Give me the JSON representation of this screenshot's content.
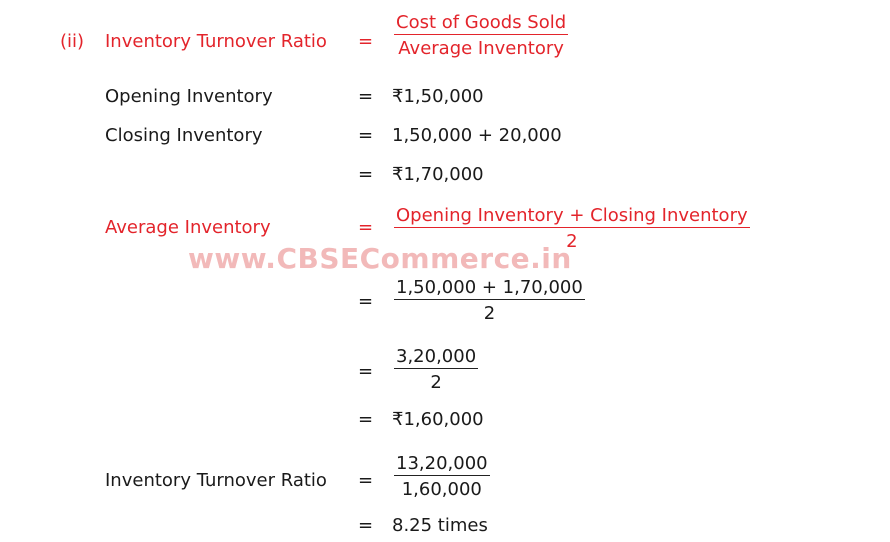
{
  "part": "(ii)",
  "formula": {
    "label": "Inventory Turnover Ratio",
    "numerator": "Cost of Goods Sold",
    "denominator": "Average Inventory"
  },
  "equals": "=",
  "opening": {
    "label": "Opening Inventory",
    "value": "₹1,50,000"
  },
  "closing": {
    "label": "Closing Inventory",
    "expr": "1,50,000 + 20,000",
    "value": "₹1,70,000"
  },
  "average": {
    "label": "Average Inventory",
    "numerator": "Opening Inventory + Closing Inventory",
    "denominator": "2",
    "step1_num": "1,50,000 + 1,70,000",
    "step1_den": "2",
    "step2_num": "3,20,000",
    "step2_den": "2",
    "value": "₹1,60,000"
  },
  "result": {
    "label": "Inventory Turnover Ratio",
    "numerator": "13,20,000",
    "denominator": "1,60,000",
    "value": "8.25 times"
  },
  "watermark": "www.CBSECommerce.in"
}
